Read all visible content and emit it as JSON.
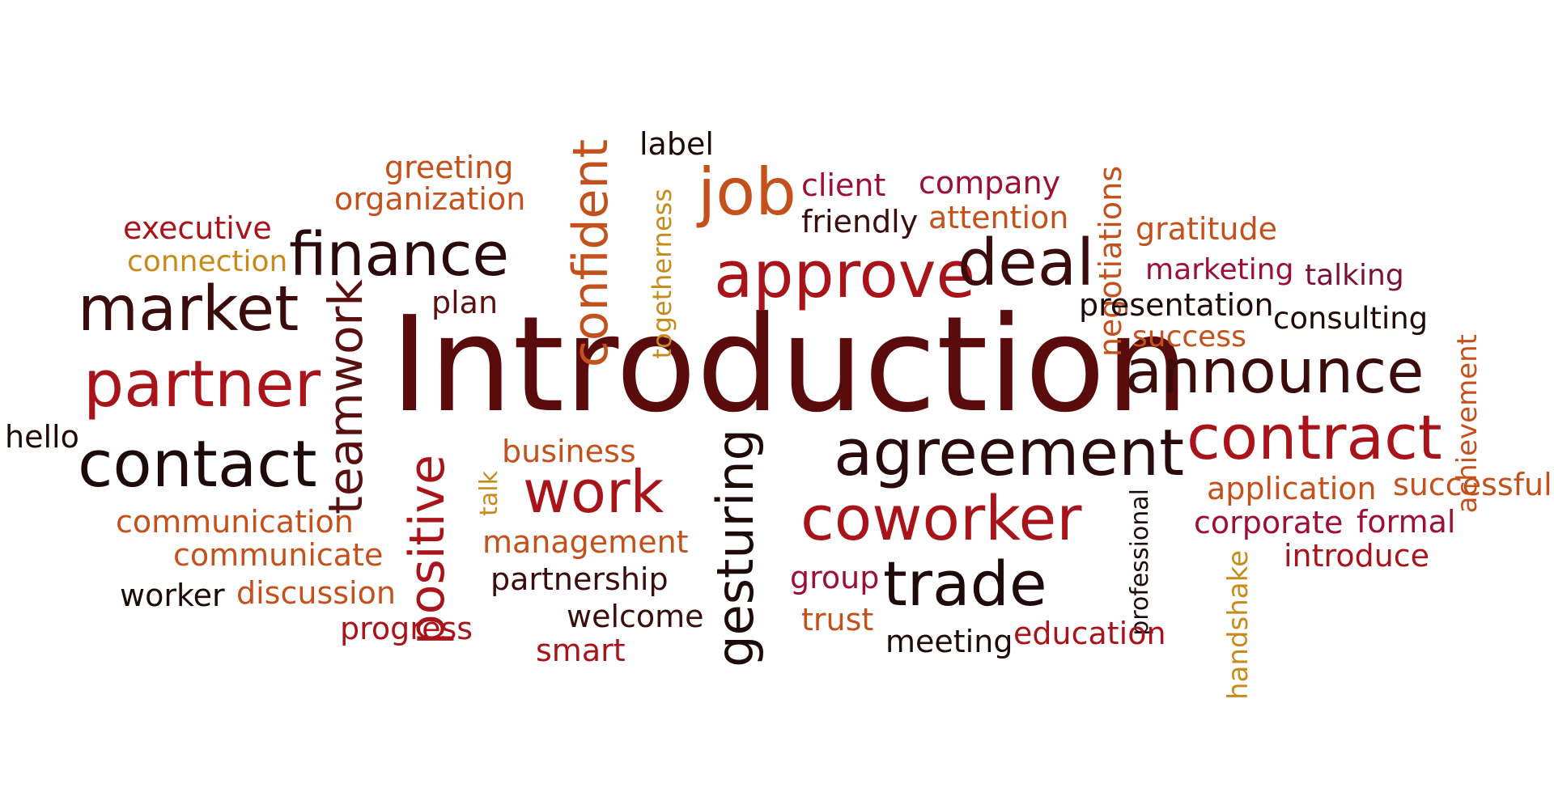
{
  "palette": {
    "dark_maroon": "#5a0b0b",
    "near_black": "#1f0a0a",
    "red": "#a8141a",
    "crimson": "#9c1035",
    "orange": "#c4501c",
    "gold": "#c98a1c",
    "plum": "#7a1034"
  },
  "words": [
    {
      "id": "introduction",
      "text": "Introduction",
      "color": "#5a0b0b"
    },
    {
      "id": "market",
      "text": "market",
      "color": "#3a0c0c"
    },
    {
      "id": "partner",
      "text": "partner",
      "color": "#a8141a"
    },
    {
      "id": "contact",
      "text": "contact",
      "color": "#1f0a0a"
    },
    {
      "id": "finance",
      "text": "finance",
      "color": "#2a0a0a"
    },
    {
      "id": "teamwork",
      "text": "teamwork",
      "color": "#5a1010"
    },
    {
      "id": "positive",
      "text": "positive",
      "color": "#a8141a"
    },
    {
      "id": "confident",
      "text": "confident",
      "color": "#c4501c"
    },
    {
      "id": "togetherness",
      "text": "togetherness",
      "color": "#c98a1c"
    },
    {
      "id": "job",
      "text": "job",
      "color": "#c4501c"
    },
    {
      "id": "approve",
      "text": "approve",
      "color": "#a8141a"
    },
    {
      "id": "deal",
      "text": "deal",
      "color": "#3a0c0c"
    },
    {
      "id": "announce",
      "text": "announce",
      "color": "#3a0c0c"
    },
    {
      "id": "contract",
      "text": "contract",
      "color": "#a8141a"
    },
    {
      "id": "agreement",
      "text": "agreement",
      "color": "#2a0a0a"
    },
    {
      "id": "coworker",
      "text": "coworker",
      "color": "#a8141a"
    },
    {
      "id": "trade",
      "text": "trade",
      "color": "#1f0a0a"
    },
    {
      "id": "work",
      "text": "work",
      "color": "#a8141a"
    },
    {
      "id": "gesturing",
      "text": "gesturing",
      "color": "#1f0a0a"
    },
    {
      "id": "greeting",
      "text": "greeting",
      "color": "#c4501c"
    },
    {
      "id": "organization",
      "text": "organization",
      "color": "#c4501c"
    },
    {
      "id": "executive",
      "text": "executive",
      "color": "#a8141a"
    },
    {
      "id": "connection",
      "text": "connection",
      "color": "#c98a1c"
    },
    {
      "id": "label",
      "text": "label",
      "color": "#1f0a0a"
    },
    {
      "id": "plan",
      "text": "plan",
      "color": "#5a1010"
    },
    {
      "id": "client",
      "text": "client",
      "color": "#9c1035"
    },
    {
      "id": "company",
      "text": "company",
      "color": "#9c1035"
    },
    {
      "id": "friendly",
      "text": "friendly",
      "color": "#3a0c0c"
    },
    {
      "id": "attention",
      "text": "attention",
      "color": "#c4501c"
    },
    {
      "id": "negotiations",
      "text": "negotiations",
      "color": "#c4501c"
    },
    {
      "id": "gratitude",
      "text": "gratitude",
      "color": "#c4501c"
    },
    {
      "id": "marketing",
      "text": "marketing",
      "color": "#9c1035"
    },
    {
      "id": "talking",
      "text": "talking",
      "color": "#7a1034"
    },
    {
      "id": "presentation",
      "text": "presentation",
      "color": "#1f0a0a"
    },
    {
      "id": "consulting",
      "text": "consulting",
      "color": "#1f0a0a"
    },
    {
      "id": "success",
      "text": "success",
      "color": "#c4501c"
    },
    {
      "id": "achievement",
      "text": "achievement",
      "color": "#c4501c"
    },
    {
      "id": "successful",
      "text": "successful",
      "color": "#c4501c"
    },
    {
      "id": "application",
      "text": "application",
      "color": "#c4501c"
    },
    {
      "id": "corporate",
      "text": "corporate",
      "color": "#9c1035"
    },
    {
      "id": "formal",
      "text": "formal",
      "color": "#9c1035"
    },
    {
      "id": "introduce",
      "text": "introduce",
      "color": "#a8141a"
    },
    {
      "id": "handshake",
      "text": "handshake",
      "color": "#c98a1c"
    },
    {
      "id": "professional",
      "text": "professional",
      "color": "#1f0a0a"
    },
    {
      "id": "hello",
      "text": "hello",
      "color": "#1f0a0a"
    },
    {
      "id": "communication",
      "text": "communication",
      "color": "#c4501c"
    },
    {
      "id": "communicate",
      "text": "communicate",
      "color": "#c4501c"
    },
    {
      "id": "worker",
      "text": "worker",
      "color": "#1f0a0a"
    },
    {
      "id": "discussion",
      "text": "discussion",
      "color": "#c4501c"
    },
    {
      "id": "progress",
      "text": "progress",
      "color": "#a8141a"
    },
    {
      "id": "business",
      "text": "business",
      "color": "#c4501c"
    },
    {
      "id": "talk",
      "text": "talk",
      "color": "#c98a1c"
    },
    {
      "id": "management",
      "text": "management",
      "color": "#c4501c"
    },
    {
      "id": "partnership",
      "text": "partnership",
      "color": "#3a0c0c"
    },
    {
      "id": "welcome",
      "text": "welcome",
      "color": "#3a0c0c"
    },
    {
      "id": "smart",
      "text": "smart",
      "color": "#a8141a"
    },
    {
      "id": "group",
      "text": "group",
      "color": "#9c1035"
    },
    {
      "id": "trust",
      "text": "trust",
      "color": "#c4501c"
    },
    {
      "id": "meeting",
      "text": "meeting",
      "color": "#1f0a0a"
    },
    {
      "id": "education",
      "text": "education",
      "color": "#a8141a"
    }
  ]
}
